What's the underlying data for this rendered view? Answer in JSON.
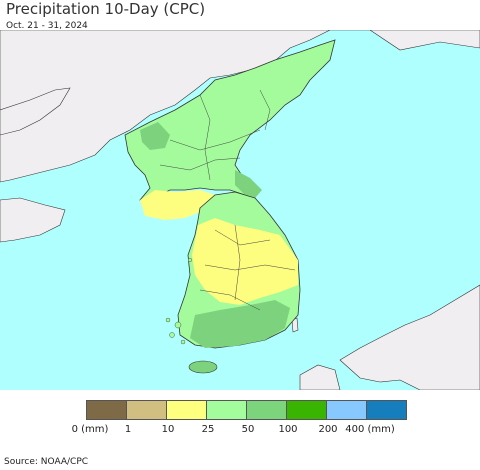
{
  "title": "Precipitation 10-Day (CPC)",
  "subtitle": "Oct. 21 - 31, 2024",
  "source": "Source: NOAA/CPC",
  "colors": {
    "ocean": "#b0ffff",
    "land_outside": "#f0eef0",
    "light_green": "#a3fb9b",
    "mid_green": "#7dd37d",
    "yellow": "#fdfd7f",
    "border": "#333333"
  },
  "legend": {
    "colors": [
      "#7f6a48",
      "#d1bf82",
      "#fefe7f",
      "#a3fd9c",
      "#7cd47c",
      "#39b400",
      "#87c9fe",
      "#167ebd"
    ],
    "tick_labels": [
      "0 (mm)",
      "1",
      "10",
      "25",
      "50",
      "100",
      "200",
      "400 (mm)"
    ]
  }
}
